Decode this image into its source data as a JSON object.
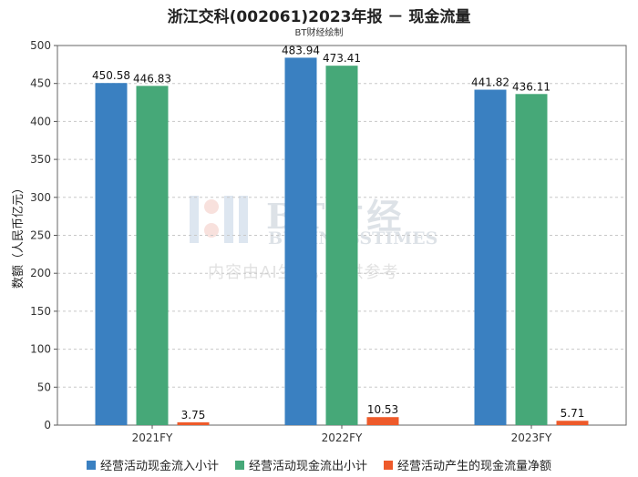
{
  "chart_data": {
    "type": "bar",
    "title": "浙江交科(002061)2023年报 － 现金流量",
    "subtitle": "BT财经绘制",
    "ylabel": "数额（人民币亿元）",
    "xlabel": "",
    "categories": [
      "2021FY",
      "2022FY",
      "2023FY"
    ],
    "ylim": [
      0,
      500
    ],
    "yticks": [
      0,
      50,
      100,
      150,
      200,
      250,
      300,
      350,
      400,
      450,
      500
    ],
    "grid": true,
    "legend_position": "bottom",
    "series": [
      {
        "name": "经营活动现金流入小计",
        "color": "#3a80c1",
        "values": [
          450.58,
          483.94,
          441.82
        ],
        "labels": [
          "450.58",
          "483.94",
          "441.82"
        ]
      },
      {
        "name": "经营活动现金流出小计",
        "color": "#46a878",
        "values": [
          446.83,
          473.41,
          436.11
        ],
        "labels": [
          "446.83",
          "473.41",
          "436.11"
        ]
      },
      {
        "name": "经营活动产生的现金流量净额",
        "color": "#ee5a2a",
        "values": [
          3.75,
          10.53,
          5.71
        ],
        "labels": [
          "3.75",
          "10.53",
          "5.71"
        ]
      }
    ]
  },
  "watermark": {
    "main": "BT财经",
    "sub": "BUSINESSTIMES",
    "note": "内容由AI生成，仅供参考"
  }
}
